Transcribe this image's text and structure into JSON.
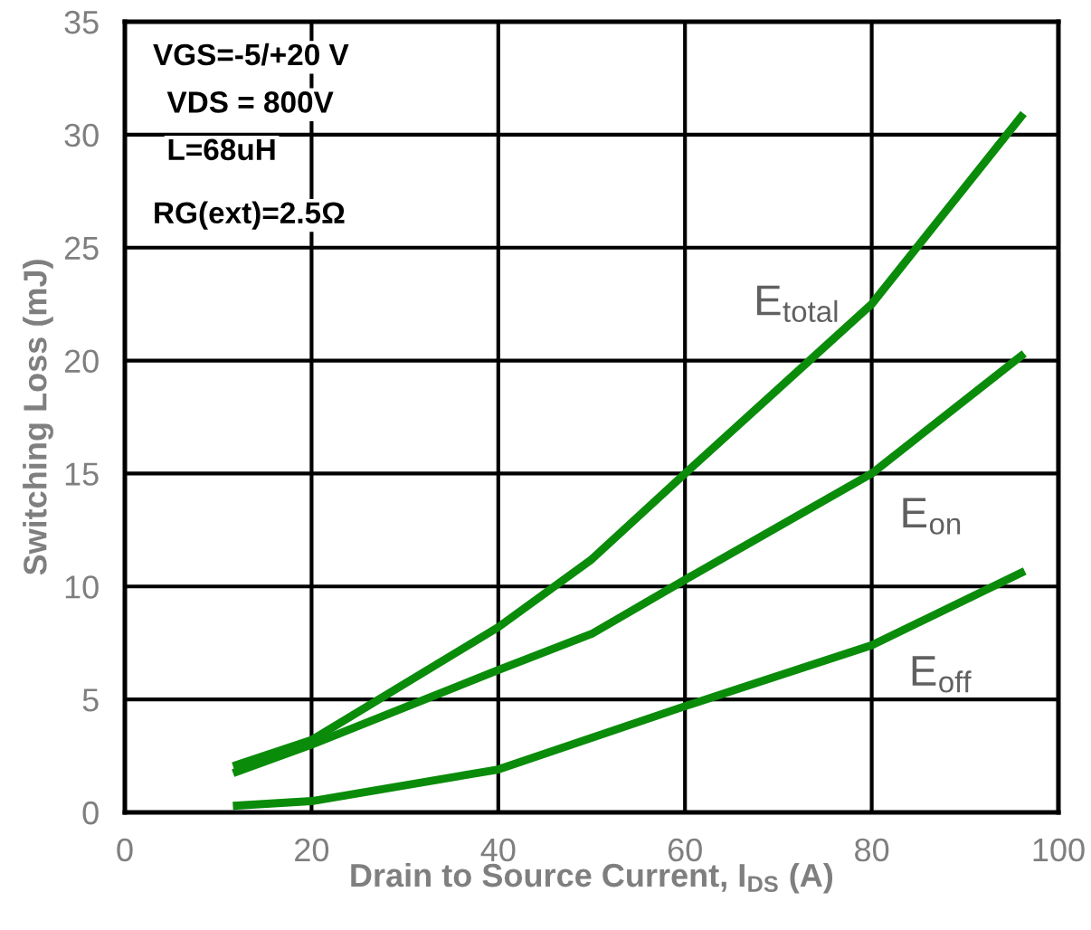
{
  "chart_data": {
    "type": "line",
    "xlabel": "Drain to Source Current, I$_{DS}$ (A)",
    "ylabel": "Switching Loss (mJ)",
    "xlim": [
      0,
      100
    ],
    "xticks": [
      0,
      20,
      40,
      60,
      80,
      100
    ],
    "ylim": [
      0,
      35
    ],
    "yticks": [
      0,
      5,
      10,
      15,
      20,
      25,
      30,
      35
    ],
    "grid": true,
    "marker": "none",
    "line_style": "solid",
    "annotations": [
      "VGS=-5/+20 V",
      "VDS = 800V",
      "L=68uH",
      "RG(ext)=2.5Ω"
    ],
    "series": [
      {
        "name": "E$_{total}$",
        "color": "#0a8c0a",
        "x": [
          12,
          20,
          40,
          50,
          60,
          80,
          96
        ],
        "values": [
          2.1,
          3.2,
          8.2,
          11.2,
          15,
          22.5,
          30.8
        ]
      },
      {
        "name": "E$_{on}$",
        "color": "#0a8c0a",
        "x": [
          12,
          20,
          40,
          50,
          60,
          80,
          96
        ],
        "values": [
          1.8,
          3.0,
          6.3,
          7.9,
          10.3,
          15,
          20.2
        ]
      },
      {
        "name": "E$_{off}$",
        "color": "#0a8c0a",
        "x": [
          12,
          20,
          40,
          60,
          80,
          96
        ],
        "values": [
          0.3,
          0.5,
          1.9,
          4.7,
          7.4,
          10.6
        ]
      }
    ]
  }
}
